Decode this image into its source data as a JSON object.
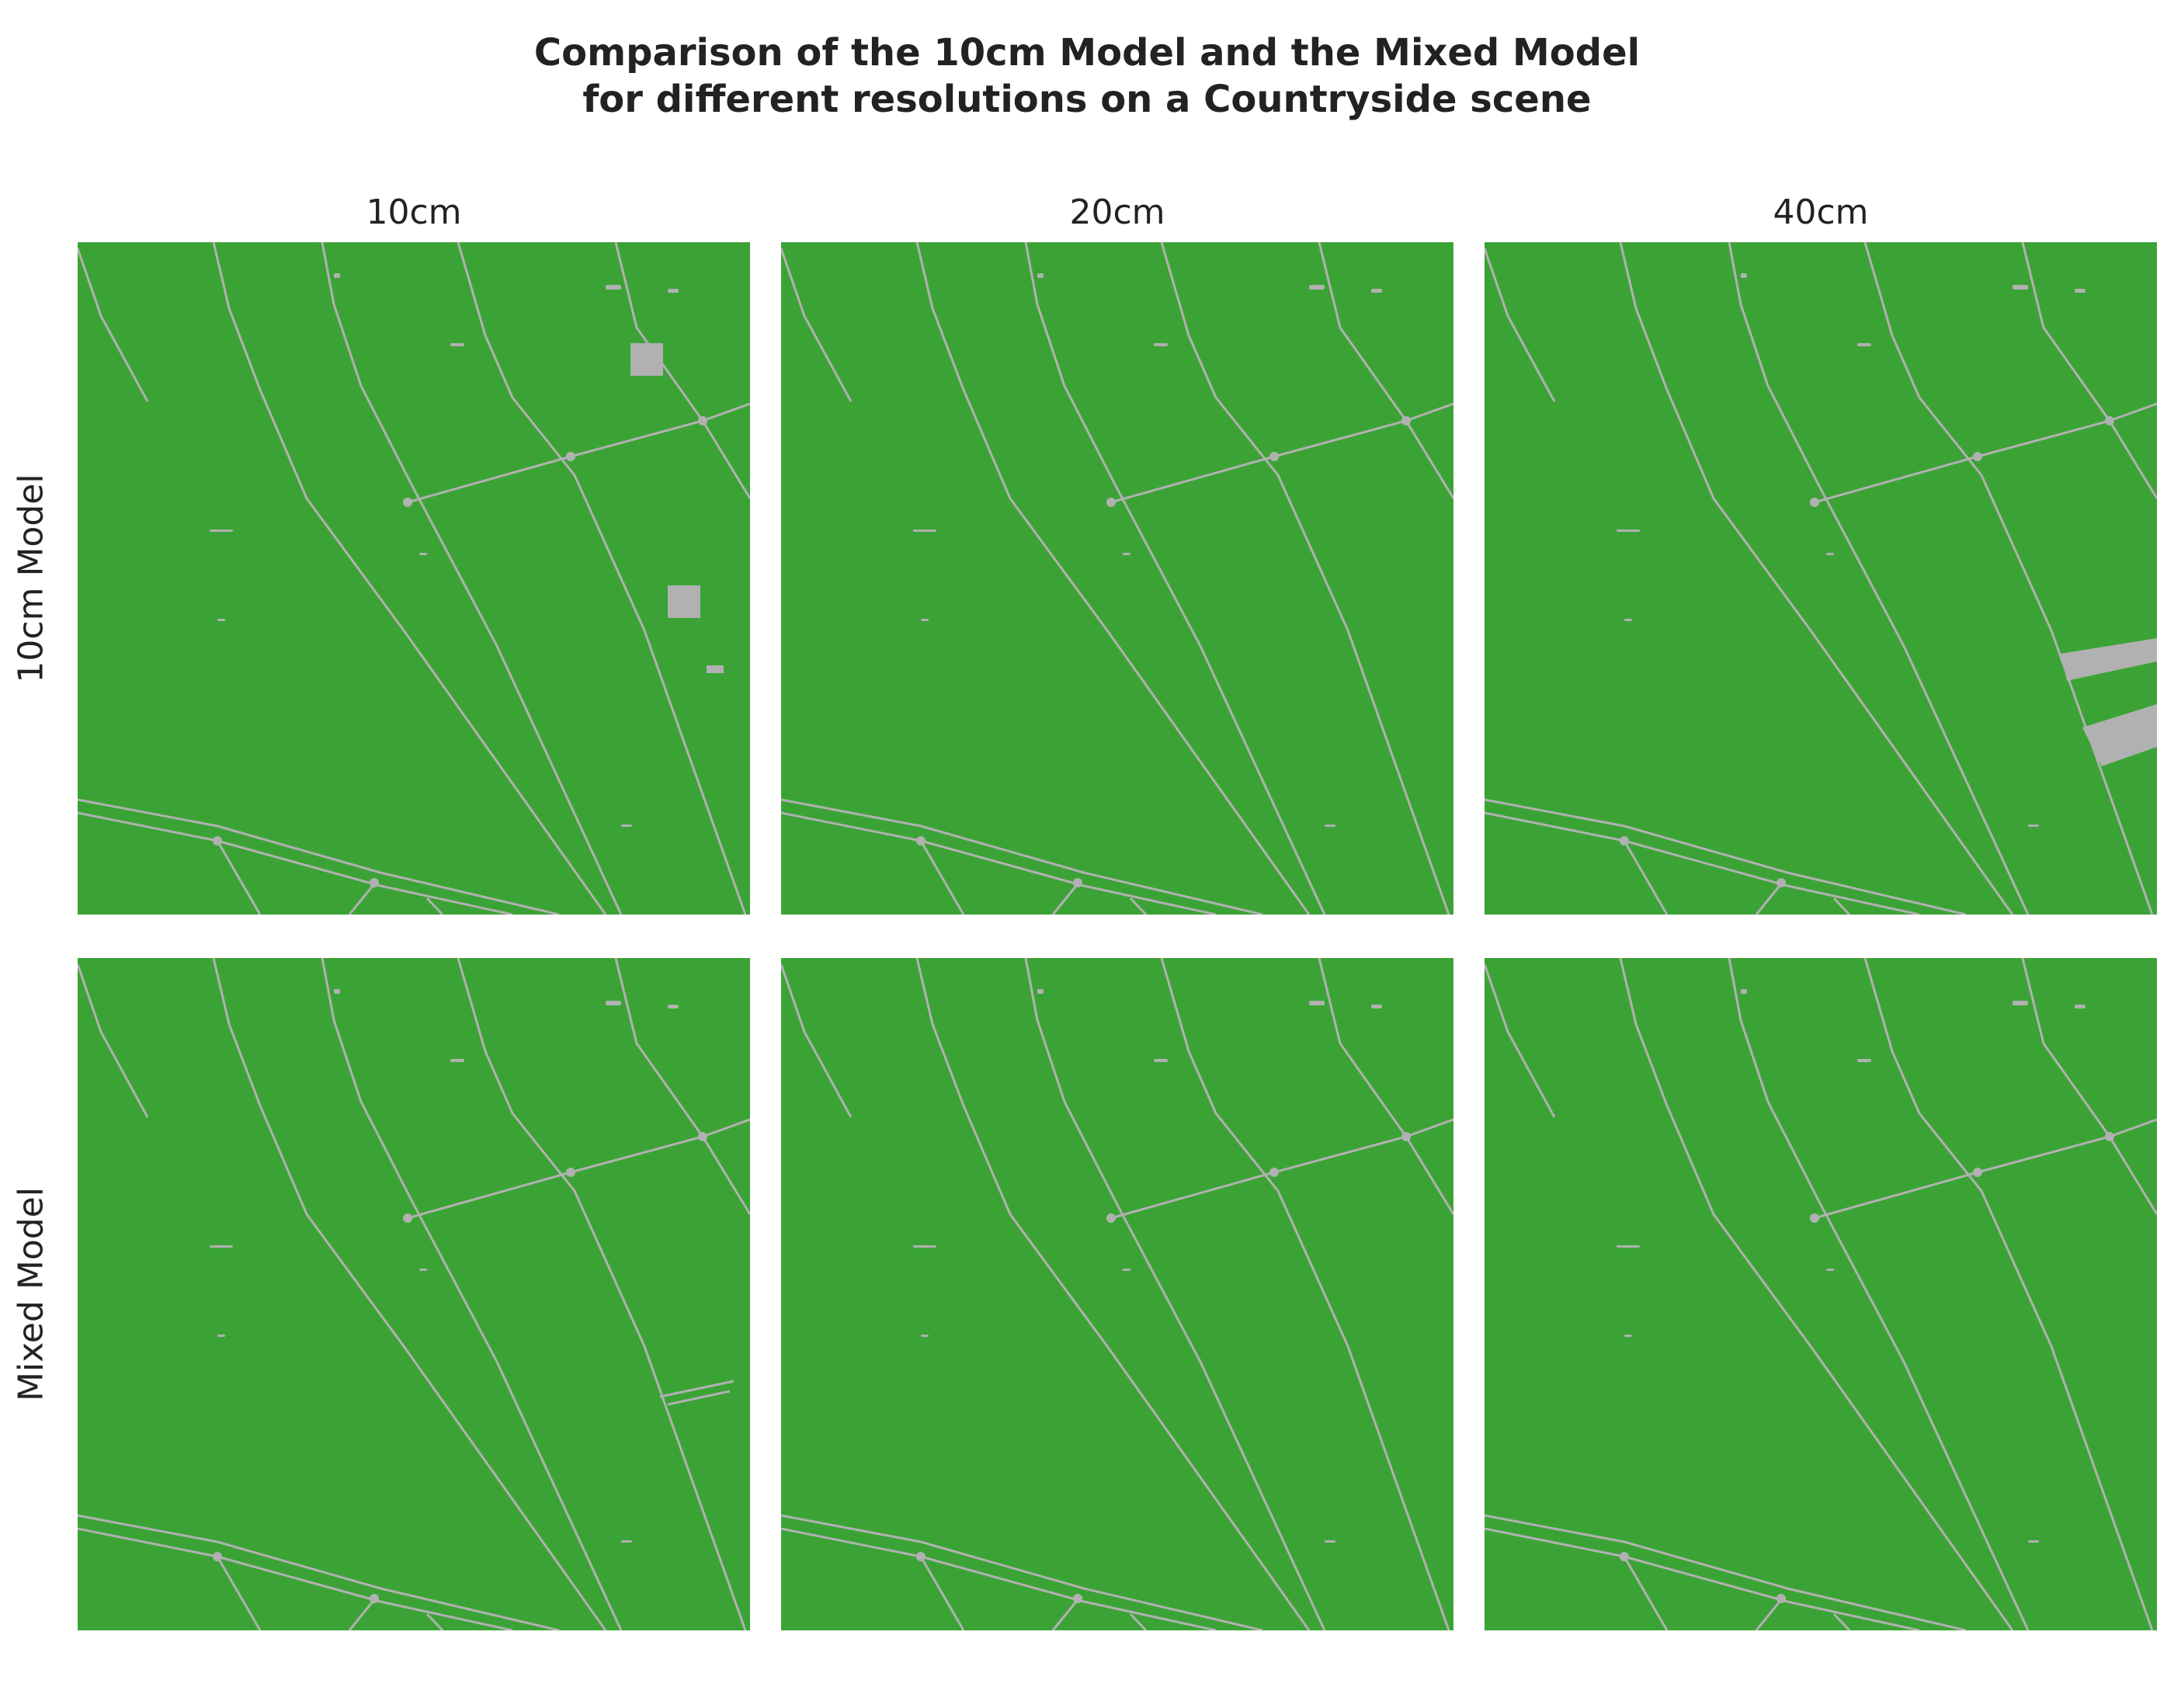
{
  "title": {
    "line1": "Comparison of the 10cm Model and the Mixed Model",
    "line2": "for different resolutions on a Countryside scene"
  },
  "columns": [
    "10cm",
    "20cm",
    "40cm"
  ],
  "rows": [
    "10cm Model",
    "Mixed Model"
  ],
  "colors": {
    "field": "#3ba336",
    "road": "#b1b1b1",
    "background": "#ffffff"
  }
}
